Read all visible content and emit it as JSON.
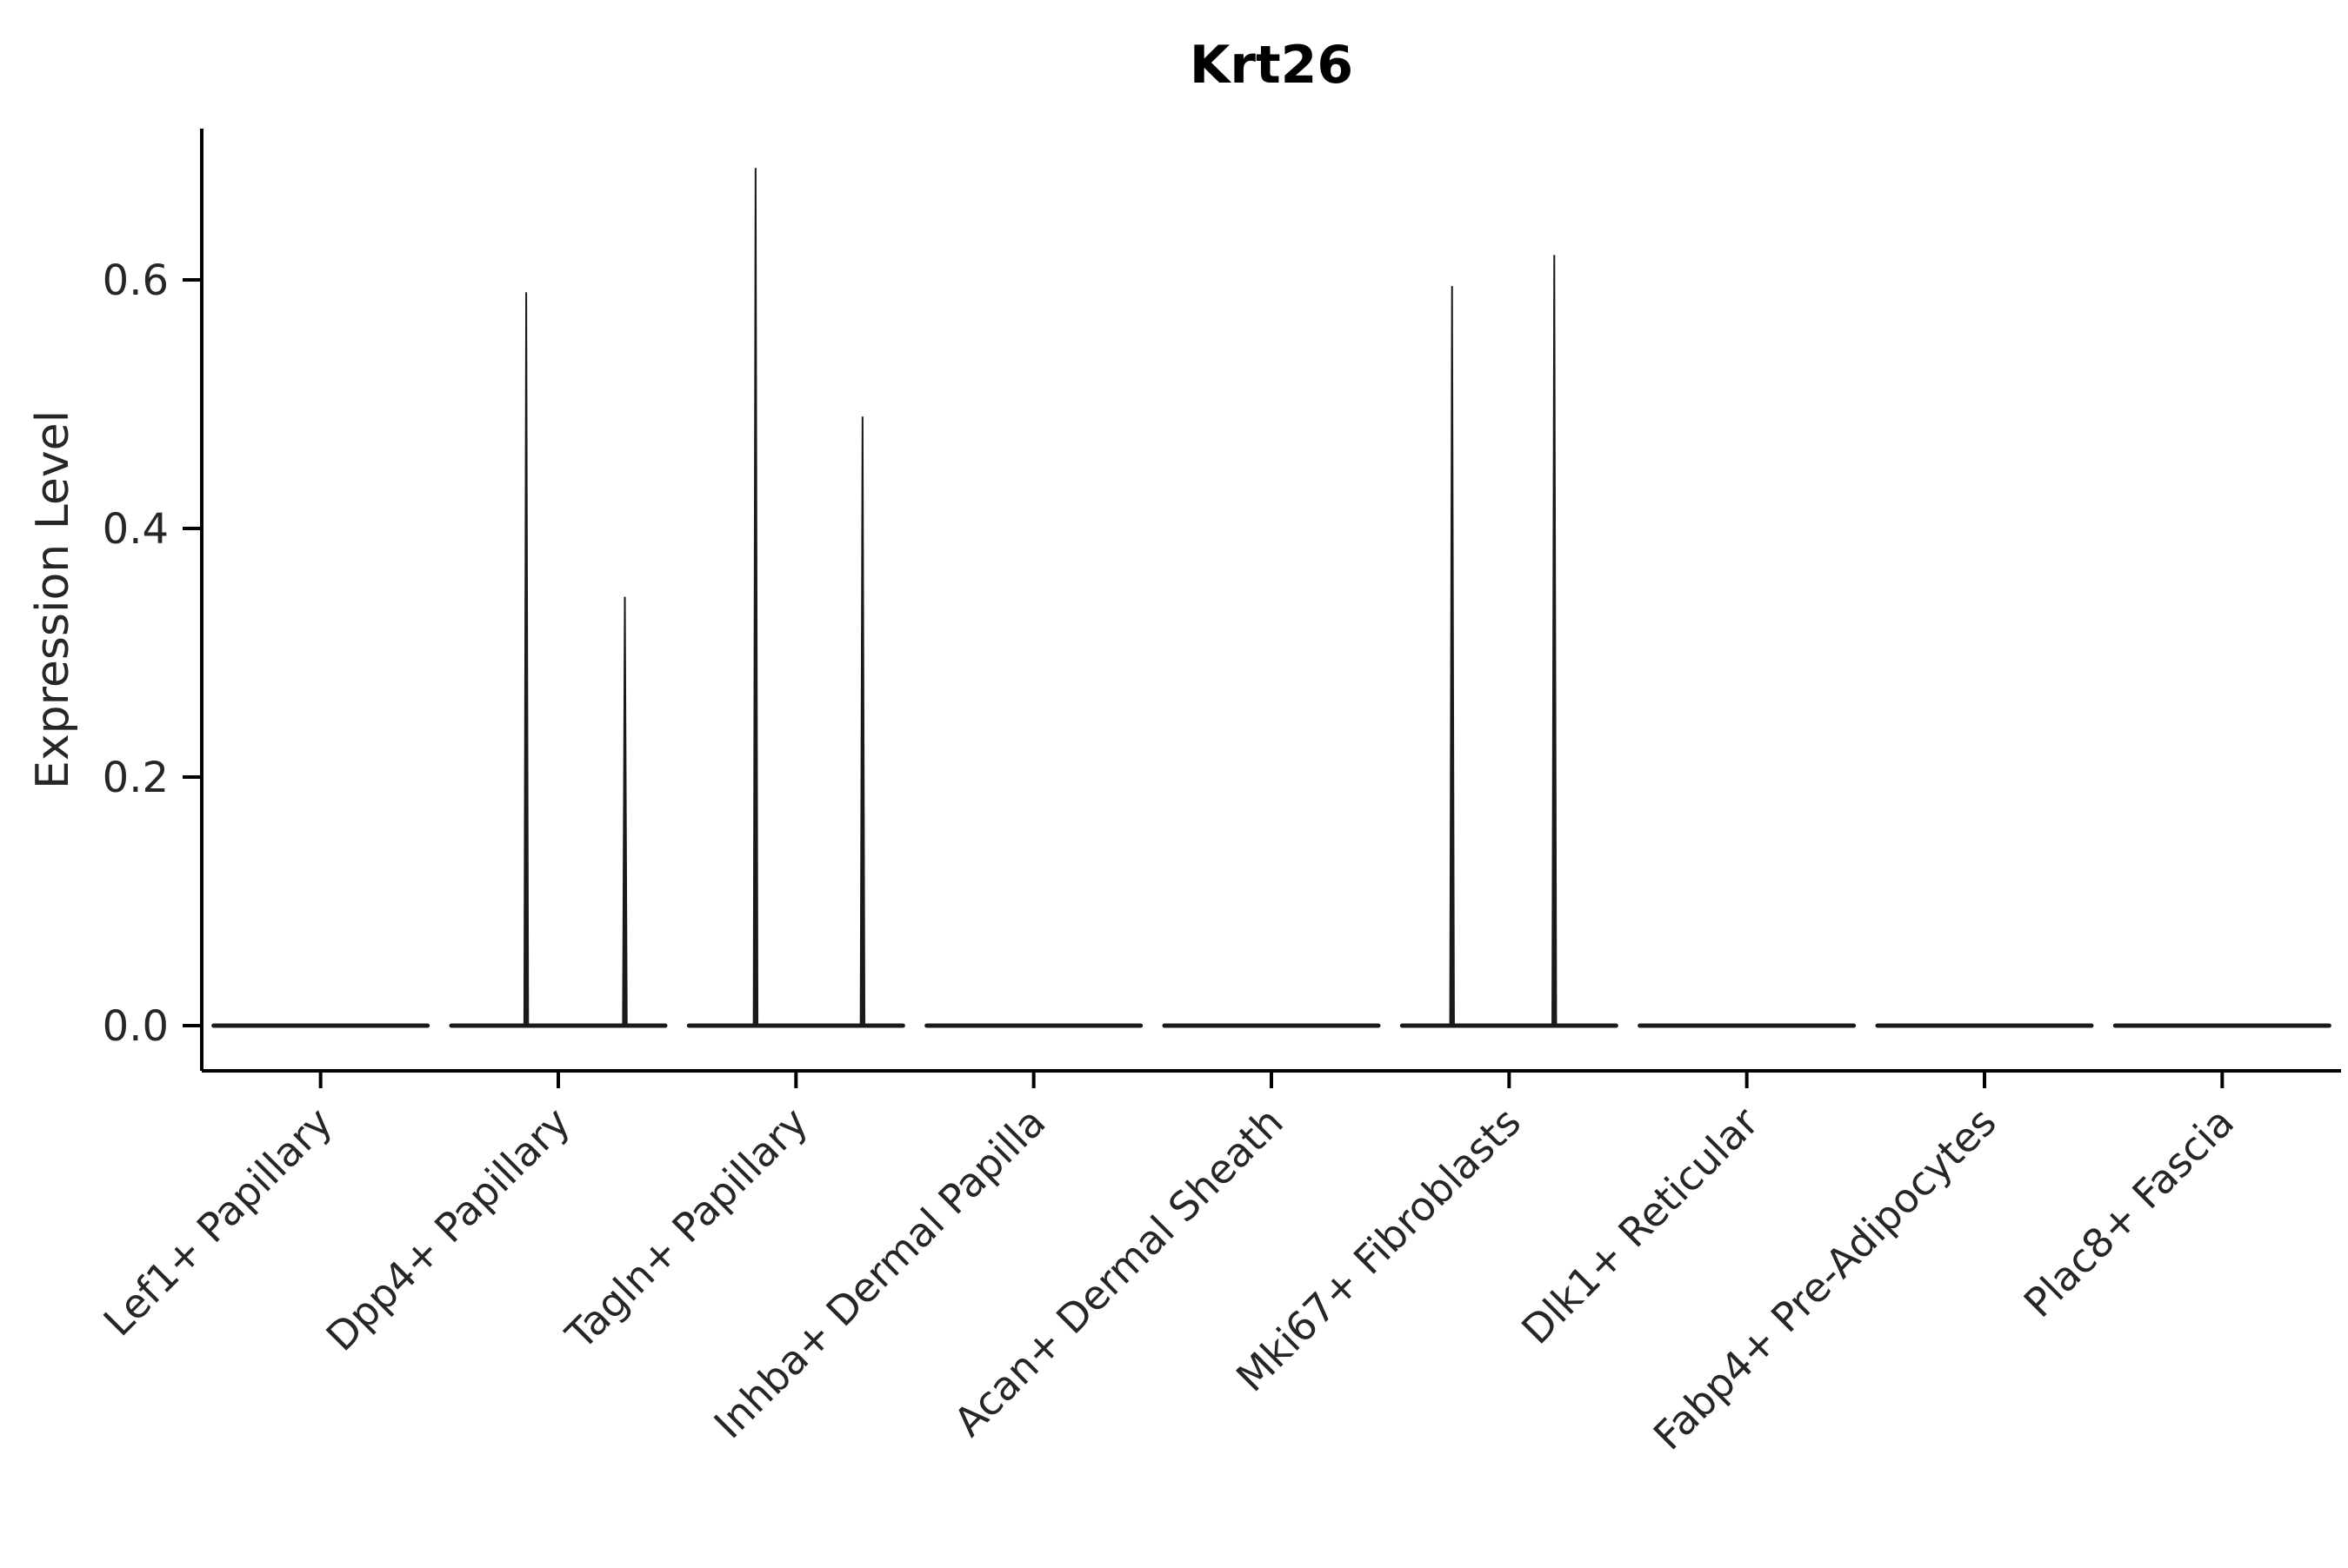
{
  "chart_data": {
    "type": "violin",
    "title": "Krt26",
    "ylabel": "Expression Level",
    "xlabel": "",
    "ylim": [
      0,
      0.72
    ],
    "yticks": [
      0.0,
      0.2,
      0.4,
      0.6
    ],
    "grid": false,
    "legend": "none",
    "colors": {
      "violin": "#1a1a1a",
      "axis": "#000000",
      "tick_text": "#262626",
      "title_text": "#000000",
      "background": "#ffffff"
    },
    "categories": [
      "Lef1+ Papillary",
      "Dpp4+ Papillary",
      "Tagln+ Papillary",
      "Inhba+ Dermal Papilla",
      "Acan+ Dermal Sheath",
      "Mki67+ Fibroblasts",
      "Dlk1+ Reticular",
      "Fabp4+ Pre-Adipocytes",
      "Plac8+ Fascia"
    ],
    "violins": [
      {
        "category": "Lef1+ Papillary",
        "baseline": 0.0,
        "spikes": []
      },
      {
        "category": "Dpp4+ Papillary",
        "baseline": 0.0,
        "spikes": [
          {
            "offset": -0.135,
            "max": 0.59
          },
          {
            "offset": 0.28,
            "max": 0.345
          }
        ]
      },
      {
        "category": "Tagln+ Papillary",
        "baseline": 0.0,
        "spikes": [
          {
            "offset": -0.17,
            "max": 0.69
          },
          {
            "offset": 0.28,
            "max": 0.49
          }
        ]
      },
      {
        "category": "Inhba+ Dermal Papilla",
        "baseline": 0.0,
        "spikes": []
      },
      {
        "category": "Acan+ Dermal Sheath",
        "baseline": 0.0,
        "spikes": []
      },
      {
        "category": "Mki67+ Fibroblasts",
        "baseline": 0.0,
        "spikes": [
          {
            "offset": -0.24,
            "max": 0.595
          },
          {
            "offset": 0.19,
            "max": 0.62
          }
        ]
      },
      {
        "category": "Dlk1+ Reticular",
        "baseline": 0.0,
        "spikes": []
      },
      {
        "category": "Fabp4+ Pre-Adipocytes",
        "baseline": 0.0,
        "spikes": []
      },
      {
        "category": "Plac8+ Fascia",
        "baseline": 0.0,
        "spikes": []
      }
    ]
  }
}
